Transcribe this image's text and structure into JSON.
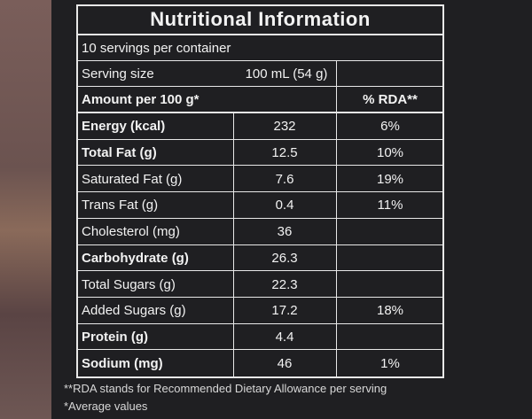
{
  "header": {
    "title": "Nutritional Information"
  },
  "servings": "10 servings per container",
  "serving_size": {
    "label": "Serving size",
    "value": "100 mL (54 g)"
  },
  "columns": {
    "amount": "Amount per 100 g*",
    "rda": "% RDA**"
  },
  "rows": [
    {
      "nutrient": "Energy (kcal)",
      "amount": "232",
      "rda": "6%",
      "bold": true
    },
    {
      "nutrient": "Total Fat (g)",
      "amount": "12.5",
      "rda": "10%",
      "bold": true
    },
    {
      "nutrient": "Saturated Fat (g)",
      "amount": "7.6",
      "rda": "19%",
      "bold": false
    },
    {
      "nutrient": "Trans Fat (g)",
      "amount": "0.4",
      "rda": "11%",
      "bold": false
    },
    {
      "nutrient": "Cholesterol (mg)",
      "amount": "36",
      "bold": false
    },
    {
      "nutrient": "Carbohydrate (g)",
      "amount": "26.3",
      "bold": true
    },
    {
      "nutrient": "Total Sugars (g)",
      "amount": "22.3",
      "bold": false
    },
    {
      "nutrient": "Added Sugars (g)",
      "amount": "17.2",
      "rda": "18%",
      "bold": false
    },
    {
      "nutrient": "Protein (g)",
      "amount": "4.4",
      "bold": true
    },
    {
      "nutrient": "Sodium (mg)",
      "amount": "46",
      "rda": "1%",
      "bold": true
    }
  ],
  "footnotes": [
    "**RDA stands for Recommended Dietary Allowance per serving",
    "*Average values"
  ]
}
